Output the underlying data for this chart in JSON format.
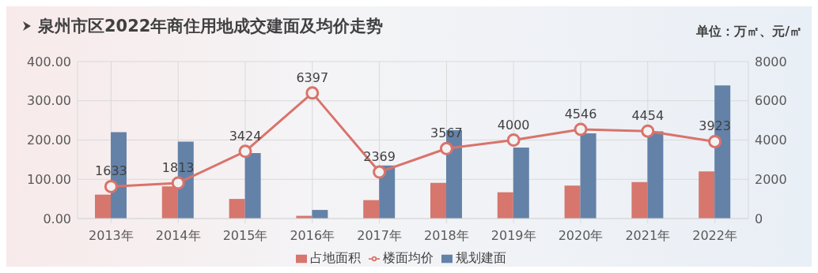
{
  "chart_data": {
    "type": "bar",
    "title": "泉州市区2022年商住用地成交建面及均价走势",
    "annotations": [
      "单位：万㎡、元/㎡"
    ],
    "categories": [
      "2013年",
      "2014年",
      "2015年",
      "2016年",
      "2017年",
      "2018年",
      "2019年",
      "2020年",
      "2021年",
      "2022年"
    ],
    "series": [
      {
        "name": "占地面积",
        "color": "#d6766d",
        "values": [
          61,
          82,
          50,
          7,
          47,
          91,
          67,
          84,
          93,
          120
        ]
      },
      {
        "name": "规划建面",
        "color": "#6482a8",
        "values": [
          220,
          196,
          167,
          22,
          135,
          225,
          181,
          217,
          222,
          339
        ]
      },
      {
        "name": "楼面均价",
        "type": "line",
        "axis": "y2",
        "color": "#d9736b",
        "values": [
          1633,
          1813,
          3424,
          6397,
          2369,
          3567,
          4000,
          4546,
          4454,
          3923
        ],
        "value_labels": [
          "1633",
          "1813",
          "3424",
          "6397",
          "2369",
          "3567",
          "4000",
          "4546",
          "4454",
          "3923"
        ]
      }
    ],
    "ylim": [
      0,
      400
    ],
    "yticks": [
      {
        "value": 0,
        "label": "0.00"
      },
      {
        "value": 100,
        "label": "100.00"
      },
      {
        "value": 200,
        "label": "200.00"
      },
      {
        "value": 300,
        "label": "300.00"
      },
      {
        "value": 400,
        "label": "400.00"
      }
    ],
    "y2lim": [
      0,
      8000
    ],
    "y2ticks": [
      0,
      2000,
      4000,
      6000,
      8000
    ],
    "grid": true,
    "legend": "bottom",
    "marker": "circle",
    "line_style": "solid"
  }
}
